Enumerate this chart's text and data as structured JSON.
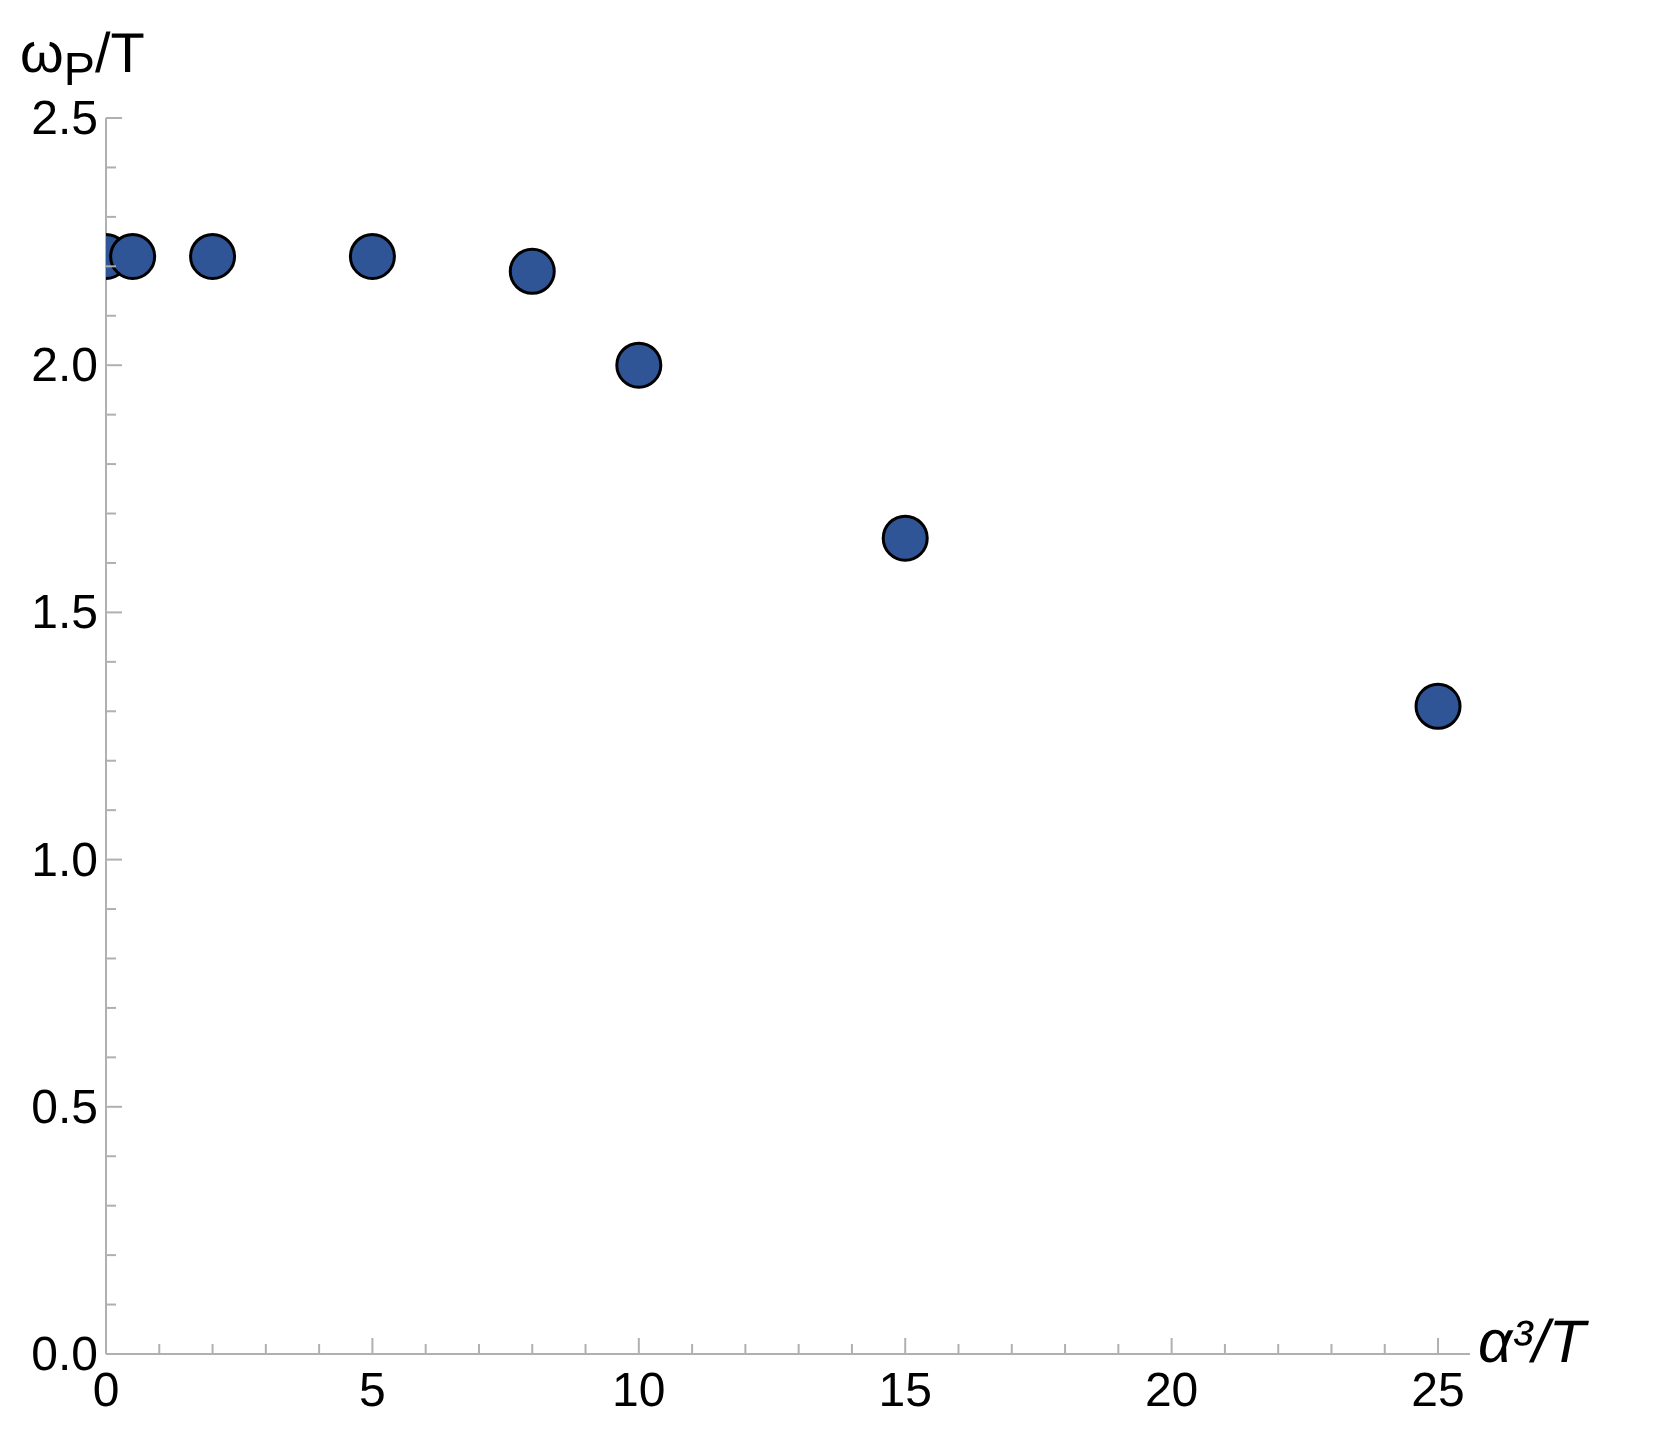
{
  "chart_data": {
    "type": "scatter",
    "xlabel": "α³/T",
    "ylabel": "ω$_{P}$/T",
    "x": [
      0,
      0.5,
      2,
      5,
      8,
      10,
      15,
      25
    ],
    "series": [
      {
        "color": "#2f5597",
        "values": [
          2.22,
          2.22,
          2.22,
          2.22,
          2.19,
          2.0,
          1.65,
          1.31
        ]
      }
    ],
    "xlim": [
      0,
      25.6
    ],
    "ylim": [
      0,
      2.5
    ],
    "xticks": [
      0,
      {
        "value": 1,
        "label": null
      },
      {
        "value": 2,
        "label": null
      },
      {
        "value": 3,
        "label": null
      },
      {
        "value": 4,
        "label": null
      },
      5,
      {
        "value": 6,
        "label": null
      },
      {
        "value": 7,
        "label": null
      },
      {
        "value": 8,
        "label": null
      },
      {
        "value": 9,
        "label": null
      },
      10,
      {
        "value": 11,
        "label": null
      },
      {
        "value": 12,
        "label": null
      },
      {
        "value": 13,
        "label": null
      },
      {
        "value": 14,
        "label": null
      },
      15,
      {
        "value": 16,
        "label": null
      },
      {
        "value": 17,
        "label": null
      },
      {
        "value": 18,
        "label": null
      },
      {
        "value": 19,
        "label": null
      },
      20,
      {
        "value": 21,
        "label": null
      },
      {
        "value": 22,
        "label": null
      },
      {
        "value": 23,
        "label": null
      },
      {
        "value": 24,
        "label": null
      },
      25
    ],
    "yticks": [
      {
        "value": 0,
        "label": "0.0"
      },
      {
        "value": 0.1,
        "label": null
      },
      {
        "value": 0.2,
        "label": null
      },
      {
        "value": 0.3,
        "label": null
      },
      {
        "value": 0.4,
        "label": null
      },
      0.5,
      {
        "value": 0.6,
        "label": null
      },
      {
        "value": 0.7,
        "label": null
      },
      {
        "value": 0.8,
        "label": null
      },
      {
        "value": 0.9,
        "label": null
      },
      {
        "value": 1,
        "label": "1.0"
      },
      {
        "value": 1.1,
        "label": null
      },
      {
        "value": 1.2,
        "label": null
      },
      {
        "value": 1.3,
        "label": null
      },
      {
        "value": 1.4,
        "label": null
      },
      1.5,
      {
        "value": 1.6,
        "label": null
      },
      {
        "value": 1.7,
        "label": null
      },
      {
        "value": 1.8,
        "label": null
      },
      {
        "value": 1.9,
        "label": null
      },
      {
        "value": 2,
        "label": "2.0"
      },
      {
        "value": 2.1,
        "label": null
      },
      {
        "value": 2.2,
        "label": null
      },
      {
        "value": 2.3,
        "label": null
      },
      {
        "value": 2.4,
        "label": null
      },
      2.5
    ],
    "marker": "circle",
    "grid": false,
    "legend": false
  }
}
